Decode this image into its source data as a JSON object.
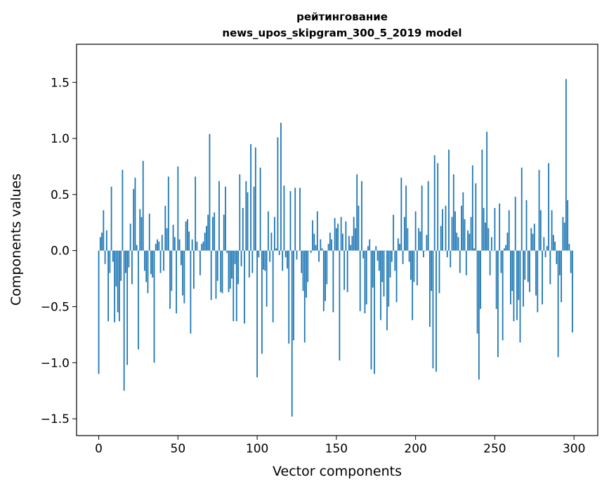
{
  "chart_data": {
    "type": "bar",
    "title": [
      "рейтингование",
      "news_upos_skipgram_300_5_2019 model"
    ],
    "xlabel": "Vector components",
    "ylabel": "Components values",
    "xlim": [
      -14,
      315
    ],
    "ylim": [
      -1.65,
      1.84
    ],
    "xticks": [
      0,
      50,
      100,
      150,
      200,
      250,
      300
    ],
    "xtick_labels": [
      "0",
      "50",
      "100",
      "150",
      "200",
      "250",
      "300"
    ],
    "yticks": [
      -1.5,
      -1.0,
      -0.5,
      0.0,
      0.5,
      1.0,
      1.5
    ],
    "ytick_labels": [
      "−1.5",
      "−1.0",
      "−0.5",
      "0.0",
      "0.5",
      "1.0",
      "1.5"
    ],
    "bar_color": "#1f77b4",
    "series": [
      {
        "name": "components",
        "x_start": 0,
        "values": [
          -1.1,
          0.12,
          0.16,
          0.36,
          -0.12,
          0.18,
          -0.63,
          -0.2,
          0.57,
          -0.1,
          -0.64,
          -0.32,
          -0.55,
          -0.63,
          -0.27,
          0.72,
          -1.25,
          -0.2,
          -1.02,
          -0.15,
          0.24,
          -0.3,
          0.55,
          0.65,
          0.05,
          -0.88,
          0.37,
          0.3,
          0.8,
          -0.18,
          -0.28,
          -0.38,
          0.33,
          -0.21,
          -0.24,
          -1.0,
          0.06,
          0.1,
          0.08,
          -0.2,
          0.14,
          -0.18,
          0.4,
          0.2,
          0.66,
          -0.52,
          -0.36,
          0.23,
          0.12,
          -0.56,
          0.75,
          0.1,
          -0.13,
          -0.4,
          -0.47,
          0.26,
          0.28,
          0.17,
          -0.74,
          0.1,
          -0.34,
          0.66,
          0.08,
          0.0,
          -0.22,
          0.06,
          0.08,
          0.16,
          0.22,
          0.32,
          1.04,
          -0.44,
          0.3,
          0.34,
          -0.43,
          -0.27,
          0.62,
          -0.37,
          -0.38,
          0.32,
          0.57,
          -0.02,
          -0.37,
          -0.34,
          -0.25,
          -0.63,
          -0.12,
          -0.63,
          -0.3,
          0.68,
          -0.14,
          0.38,
          -0.65,
          0.62,
          0.52,
          -0.24,
          0.95,
          -0.2,
          0.57,
          0.92,
          -1.13,
          -0.06,
          0.74,
          -0.92,
          -0.17,
          -0.18,
          -0.5,
          0.35,
          -0.1,
          0.16,
          -0.64,
          0.3,
          0.02,
          1.01,
          -0.04,
          1.14,
          -0.18,
          0.58,
          -0.06,
          -0.16,
          -0.83,
          0.53,
          -1.48,
          -0.8,
          0.56,
          -0.08,
          0.0,
          0.56,
          -0.2,
          -0.36,
          -0.82,
          -0.42,
          -0.28,
          0.0,
          -0.02,
          0.27,
          0.15,
          0.05,
          0.35,
          -0.1,
          0.1,
          0.02,
          -0.54,
          -0.45,
          -0.3,
          0.06,
          0.16,
          0.1,
          -0.55,
          0.29,
          0.2,
          0.24,
          -0.98,
          0.3,
          0.15,
          -0.35,
          0.26,
          -0.37,
          0.13,
          0.05,
          0.13,
          0.3,
          0.2,
          0.68,
          0.4,
          -0.54,
          0.62,
          -0.07,
          -0.56,
          -0.48,
          0.04,
          0.1,
          -1.06,
          -0.33,
          -1.1,
          0.04,
          -0.09,
          -0.18,
          -0.62,
          -0.28,
          -0.41,
          0.0,
          -0.71,
          -0.5,
          -0.24,
          -0.1,
          0.32,
          -0.18,
          -0.46,
          0.11,
          0.06,
          0.65,
          -0.12,
          0.3,
          0.58,
          0.2,
          -0.1,
          -0.26,
          -0.62,
          -0.28,
          0.35,
          -0.31,
          0.2,
          0.17,
          0.58,
          -0.06,
          0.0,
          0.14,
          0.62,
          -0.68,
          -0.36,
          -1.05,
          0.85,
          -1.08,
          0.78,
          -0.38,
          0.22,
          0.37,
          0.0,
          0.4,
          -0.06,
          0.9,
          -0.15,
          0.3,
          0.68,
          0.35,
          0.16,
          0.12,
          -0.2,
          0.4,
          0.52,
          0.28,
          -0.22,
          0.18,
          0.15,
          0.3,
          0.76,
          0.02,
          0.6,
          -0.74,
          -1.15,
          -0.52,
          0.9,
          0.38,
          0.25,
          1.06,
          0.2,
          -0.22,
          0.12,
          0.0,
          0.38,
          -0.52,
          -0.95,
          0.42,
          -0.2,
          -0.8,
          0.02,
          0.05,
          0.16,
          0.36,
          -0.48,
          -0.36,
          -0.63,
          0.48,
          -0.62,
          -0.44,
          -0.82,
          0.74,
          -0.5,
          -0.26,
          0.45,
          -0.28,
          -0.37,
          0.2,
          0.15,
          0.24,
          -0.4,
          -0.55,
          0.72,
          0.36,
          -0.48,
          0.12,
          -0.06,
          0.04,
          0.78,
          -0.3,
          0.36,
          0.14,
          0.08,
          -0.12,
          -0.95,
          -0.22,
          -0.46,
          0.3,
          0.25,
          1.53,
          0.45,
          0.06,
          -0.2,
          -0.73
        ]
      }
    ]
  }
}
